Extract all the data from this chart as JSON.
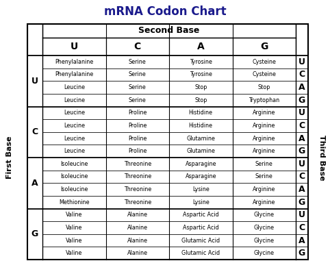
{
  "title": "mRNA Codon Chart",
  "second_base_label": "Second Base",
  "first_base_label": "First Base",
  "third_base_label": "Third Base",
  "second_bases": [
    "U",
    "C",
    "A",
    "G"
  ],
  "first_bases": [
    "U",
    "C",
    "A",
    "G"
  ],
  "third_bases": [
    "U",
    "C",
    "A",
    "G"
  ],
  "table_data": [
    [
      "Phenylalanine",
      "Serine",
      "Tyrosine",
      "Cysteine"
    ],
    [
      "Phenylalanine",
      "Serine",
      "Tyrosine",
      "Cysteine"
    ],
    [
      "Leucine",
      "Serine",
      "Stop",
      "Stop"
    ],
    [
      "Leucine",
      "Serine",
      "Stop",
      "Tryptophan"
    ],
    [
      "Leucine",
      "Proline",
      "Histidine",
      "Arginine"
    ],
    [
      "Leucine",
      "Proline",
      "Histidine",
      "Arginine"
    ],
    [
      "Leucine",
      "Proline",
      "Glutamine",
      "Arginine"
    ],
    [
      "Leucine",
      "Proline",
      "Glutamine",
      "Arginine"
    ],
    [
      "Isoleucine",
      "Threonine",
      "Asparagine",
      "Serine"
    ],
    [
      "Isoleucine",
      "Threonine",
      "Asparagine",
      "Serine"
    ],
    [
      "Isoleucine",
      "Threonine",
      "Lysine",
      "Arginine"
    ],
    [
      "Methionine",
      "Threonine",
      "Lysine",
      "Arginine"
    ],
    [
      "Valine",
      "Alanine",
      "Aspartic Acid",
      "Glycine"
    ],
    [
      "Valine",
      "Alanine",
      "Aspartic Acid",
      "Glycine"
    ],
    [
      "Valine",
      "Alanine",
      "Glutamic Acid",
      "Glycine"
    ],
    [
      "Valine",
      "Alanine",
      "Glutamic Acid",
      "Glycine"
    ]
  ],
  "title_color": "#1a1a8c",
  "header_color": "#000000",
  "cell_text_color": "#000000",
  "bold_label_color": "#000000",
  "background_color": "#ffffff",
  "grid_color": "#000000",
  "figsize": [
    4.82,
    3.84
  ],
  "dpi": 100,
  "title_fontsize": 12,
  "header_fontsize": 9,
  "base_header_fontsize": 10,
  "cell_fontsize": 5.8,
  "fb_tb_fontsize": 9,
  "side_label_fontsize": 8
}
